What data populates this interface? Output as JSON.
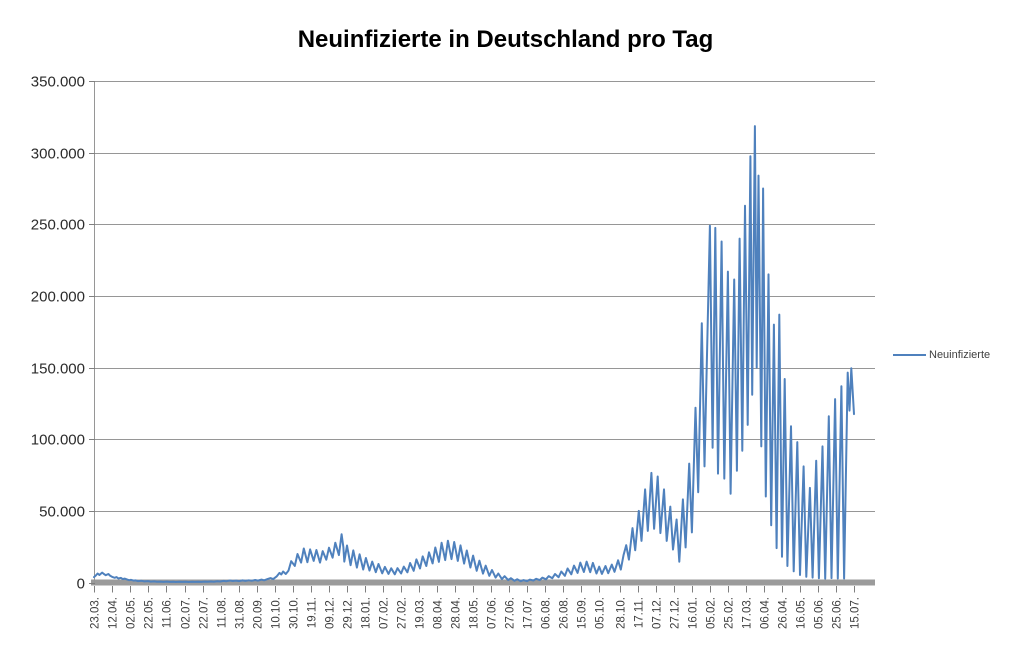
{
  "title": "Neuinfizierte in Deutschland pro Tag",
  "legend": {
    "label": "Neuinfizierte"
  },
  "colors": {
    "series_line": "#4F81BD",
    "gridline": "#969696",
    "axis_line": "#969696",
    "zero_bar": "#9B9B9B",
    "tick_mark": "#7F7F7F",
    "y_label_text": "#2b2b2b",
    "x_label_text": "#3f3f3f",
    "title_text": "#000000",
    "background": "#ffffff"
  },
  "chart_data": {
    "type": "line",
    "title": "Neuinfizierte in Deutschland pro Tag",
    "grid": true,
    "legend_position": "right",
    "y_axis": {
      "min": 0,
      "max": 350000,
      "tick_interval": 50000,
      "tick_labels_top_to_bottom": [
        "350.000",
        "300.000",
        "250.000",
        "200.000",
        "150.000",
        "100.000",
        "50.000",
        "0"
      ]
    },
    "x_axis": {
      "total_days": 844,
      "tick_labels": [
        "23.03.",
        "12.04.",
        "02.05.",
        "22.05.",
        "11.06.",
        "02.07.",
        "22.07.",
        "11.08.",
        "31.08.",
        "20.09.",
        "10.10.",
        "30.10.",
        "19.11.",
        "09.12.",
        "29.12.",
        "18.01.",
        "07.02.",
        "27.02.",
        "19.03.",
        "08.04.",
        "28.04.",
        "18.05.",
        "07.06.",
        "27.06.",
        "17.07.",
        "06.08.",
        "26.08.",
        "15.09.",
        "05.10.",
        "28.10.",
        "17.11.",
        "07.12.",
        "27.12.",
        "16.01.",
        "05.02.",
        "25.02.",
        "17.03.",
        "06.04.",
        "26.04.",
        "16.05.",
        "05.06.",
        "25.06.",
        "15.07."
      ],
      "tick_days": [
        0,
        20,
        40,
        60,
        80,
        101,
        121,
        141,
        161,
        181,
        201,
        221,
        241,
        261,
        281,
        301,
        321,
        341,
        361,
        381,
        401,
        421,
        441,
        461,
        481,
        501,
        521,
        541,
        561,
        584,
        604,
        624,
        644,
        664,
        684,
        704,
        724,
        744,
        764,
        784,
        804,
        824,
        844
      ]
    },
    "series": [
      {
        "name": "Neuinfizierte",
        "points": [
          [
            0,
            3800
          ],
          [
            2,
            4900
          ],
          [
            4,
            6300
          ],
          [
            6,
            5200
          ],
          [
            9,
            6900
          ],
          [
            11,
            5900
          ],
          [
            13,
            5100
          ],
          [
            16,
            5900
          ],
          [
            18,
            4700
          ],
          [
            20,
            4000
          ],
          [
            23,
            3300
          ],
          [
            25,
            3800
          ],
          [
            27,
            2800
          ],
          [
            30,
            3200
          ],
          [
            32,
            2400
          ],
          [
            34,
            2700
          ],
          [
            37,
            2000
          ],
          [
            39,
            1600
          ],
          [
            41,
            1900
          ],
          [
            44,
            1300
          ],
          [
            46,
            1500
          ],
          [
            49,
            1000
          ],
          [
            53,
            1200
          ],
          [
            56,
            800
          ],
          [
            60,
            950
          ],
          [
            63,
            600
          ],
          [
            67,
            750
          ],
          [
            70,
            500
          ],
          [
            74,
            650
          ],
          [
            77,
            450
          ],
          [
            81,
            600
          ],
          [
            84,
            400
          ],
          [
            88,
            550
          ],
          [
            91,
            380
          ],
          [
            95,
            500
          ],
          [
            98,
            400
          ],
          [
            102,
            480
          ],
          [
            105,
            380
          ],
          [
            109,
            520
          ],
          [
            112,
            420
          ],
          [
            116,
            560
          ],
          [
            119,
            450
          ],
          [
            123,
            620
          ],
          [
            126,
            500
          ],
          [
            130,
            720
          ],
          [
            133,
            580
          ],
          [
            137,
            880
          ],
          [
            140,
            700
          ],
          [
            144,
            1150
          ],
          [
            147,
            900
          ],
          [
            151,
            1400
          ],
          [
            154,
            1050
          ],
          [
            158,
            1300
          ],
          [
            161,
            980
          ],
          [
            165,
            1450
          ],
          [
            168,
            1100
          ],
          [
            172,
            1550
          ],
          [
            175,
            1200
          ],
          [
            179,
            1750
          ],
          [
            182,
            1350
          ],
          [
            186,
            2050
          ],
          [
            189,
            1550
          ],
          [
            193,
            2500
          ],
          [
            196,
            3100
          ],
          [
            199,
            2400
          ],
          [
            203,
            4300
          ],
          [
            206,
            6700
          ],
          [
            208,
            5600
          ],
          [
            210,
            7700
          ],
          [
            213,
            5900
          ],
          [
            216,
            8300
          ],
          [
            219,
            14900
          ],
          [
            223,
            11600
          ],
          [
            226,
            19900
          ],
          [
            230,
            13900
          ],
          [
            233,
            23700
          ],
          [
            237,
            14200
          ],
          [
            240,
            23100
          ],
          [
            244,
            15100
          ],
          [
            247,
            22700
          ],
          [
            251,
            13900
          ],
          [
            254,
            21900
          ],
          [
            258,
            15900
          ],
          [
            261,
            24300
          ],
          [
            265,
            17300
          ],
          [
            268,
            27800
          ],
          [
            272,
            19100
          ],
          [
            275,
            33700
          ],
          [
            277,
            24500
          ],
          [
            278,
            14600
          ],
          [
            281,
            25800
          ],
          [
            285,
            12100
          ],
          [
            288,
            22400
          ],
          [
            292,
            10400
          ],
          [
            295,
            19700
          ],
          [
            299,
            9100
          ],
          [
            302,
            17100
          ],
          [
            306,
            8300
          ],
          [
            309,
            14600
          ],
          [
            313,
            7200
          ],
          [
            316,
            12900
          ],
          [
            320,
            6400
          ],
          [
            323,
            10900
          ],
          [
            327,
            6000
          ],
          [
            330,
            9900
          ],
          [
            334,
            5700
          ],
          [
            337,
            10000
          ],
          [
            341,
            6300
          ],
          [
            344,
            11100
          ],
          [
            348,
            7100
          ],
          [
            351,
            13600
          ],
          [
            355,
            8200
          ],
          [
            358,
            16100
          ],
          [
            362,
            9800
          ],
          [
            365,
            18200
          ],
          [
            369,
            11500
          ],
          [
            372,
            21100
          ],
          [
            376,
            13300
          ],
          [
            379,
            24400
          ],
          [
            383,
            14400
          ],
          [
            386,
            27700
          ],
          [
            390,
            15600
          ],
          [
            393,
            29200
          ],
          [
            397,
            16300
          ],
          [
            400,
            28300
          ],
          [
            404,
            15100
          ],
          [
            407,
            25900
          ],
          [
            411,
            13200
          ],
          [
            414,
            22300
          ],
          [
            418,
            10500
          ],
          [
            421,
            18800
          ],
          [
            425,
            8200
          ],
          [
            428,
            15200
          ],
          [
            432,
            6200
          ],
          [
            435,
            11700
          ],
          [
            439,
            4700
          ],
          [
            442,
            8700
          ],
          [
            446,
            3400
          ],
          [
            449,
            6300
          ],
          [
            453,
            2400
          ],
          [
            456,
            4400
          ],
          [
            460,
            1700
          ],
          [
            463,
            3000
          ],
          [
            467,
            1200
          ],
          [
            470,
            2200
          ],
          [
            474,
            900
          ],
          [
            477,
            1700
          ],
          [
            481,
            1000
          ],
          [
            484,
            2000
          ],
          [
            488,
            1400
          ],
          [
            491,
            2600
          ],
          [
            495,
            1700
          ],
          [
            498,
            3400
          ],
          [
            502,
            2200
          ],
          [
            505,
            4500
          ],
          [
            509,
            3000
          ],
          [
            512,
            5900
          ],
          [
            516,
            3700
          ],
          [
            519,
            7700
          ],
          [
            523,
            4700
          ],
          [
            526,
            9800
          ],
          [
            530,
            5700
          ],
          [
            533,
            11800
          ],
          [
            537,
            6700
          ],
          [
            540,
            13900
          ],
          [
            544,
            7300
          ],
          [
            547,
            14600
          ],
          [
            551,
            7200
          ],
          [
            554,
            13700
          ],
          [
            558,
            6300
          ],
          [
            561,
            11000
          ],
          [
            564,
            6000
          ],
          [
            568,
            11500
          ],
          [
            571,
            6500
          ],
          [
            575,
            12500
          ],
          [
            578,
            7500
          ],
          [
            582,
            15500
          ],
          [
            585,
            9000
          ],
          [
            588,
            19000
          ],
          [
            591,
            26000
          ],
          [
            594,
            16000
          ],
          [
            598,
            38000
          ],
          [
            601,
            22500
          ],
          [
            605,
            50000
          ],
          [
            608,
            29000
          ],
          [
            612,
            65000
          ],
          [
            615,
            36000
          ],
          [
            619,
            76500
          ],
          [
            622,
            37500
          ],
          [
            626,
            74000
          ],
          [
            629,
            34500
          ],
          [
            633,
            65000
          ],
          [
            636,
            29000
          ],
          [
            640,
            53000
          ],
          [
            643,
            23000
          ],
          [
            647,
            44000
          ],
          [
            650,
            14500
          ],
          [
            654,
            58000
          ],
          [
            657,
            24500
          ],
          [
            661,
            83000
          ],
          [
            664,
            35000
          ],
          [
            668,
            122000
          ],
          [
            671,
            63000
          ],
          [
            675,
            181000
          ],
          [
            678,
            81000
          ],
          [
            684,
            249000
          ],
          [
            687,
            94000
          ],
          [
            690,
            247500
          ],
          [
            693,
            76000
          ],
          [
            697,
            238000
          ],
          [
            700,
            72500
          ],
          [
            704,
            217000
          ],
          [
            707,
            62000
          ],
          [
            711,
            211500
          ],
          [
            714,
            78000
          ],
          [
            717,
            240000
          ],
          [
            720,
            92000
          ],
          [
            723,
            263000
          ],
          [
            726,
            110000
          ],
          [
            729,
            297500
          ],
          [
            731,
            131000
          ],
          [
            734,
            318500
          ],
          [
            736,
            150000
          ],
          [
            738,
            284000
          ],
          [
            741,
            95000
          ],
          [
            743,
            275000
          ],
          [
            746,
            60000
          ],
          [
            749,
            215000
          ],
          [
            752,
            40000
          ],
          [
            755,
            180000
          ],
          [
            758,
            24000
          ],
          [
            761,
            187000
          ],
          [
            764,
            18000
          ],
          [
            767,
            142000
          ],
          [
            770,
            11500
          ],
          [
            774,
            109000
          ],
          [
            777,
            7800
          ],
          [
            781,
            98000
          ],
          [
            784,
            5200
          ],
          [
            788,
            81000
          ],
          [
            791,
            4000
          ],
          [
            795,
            66000
          ],
          [
            798,
            3400
          ],
          [
            802,
            85000
          ],
          [
            805,
            3000
          ],
          [
            809,
            95000
          ],
          [
            812,
            2700
          ],
          [
            816,
            116000
          ],
          [
            819,
            3100
          ],
          [
            823,
            128000
          ],
          [
            826,
            2800
          ],
          [
            830,
            137000
          ],
          [
            833,
            2800
          ],
          [
            837,
            146500
          ],
          [
            839,
            120000
          ],
          [
            841,
            149500
          ],
          [
            844,
            117500
          ]
        ]
      }
    ]
  }
}
